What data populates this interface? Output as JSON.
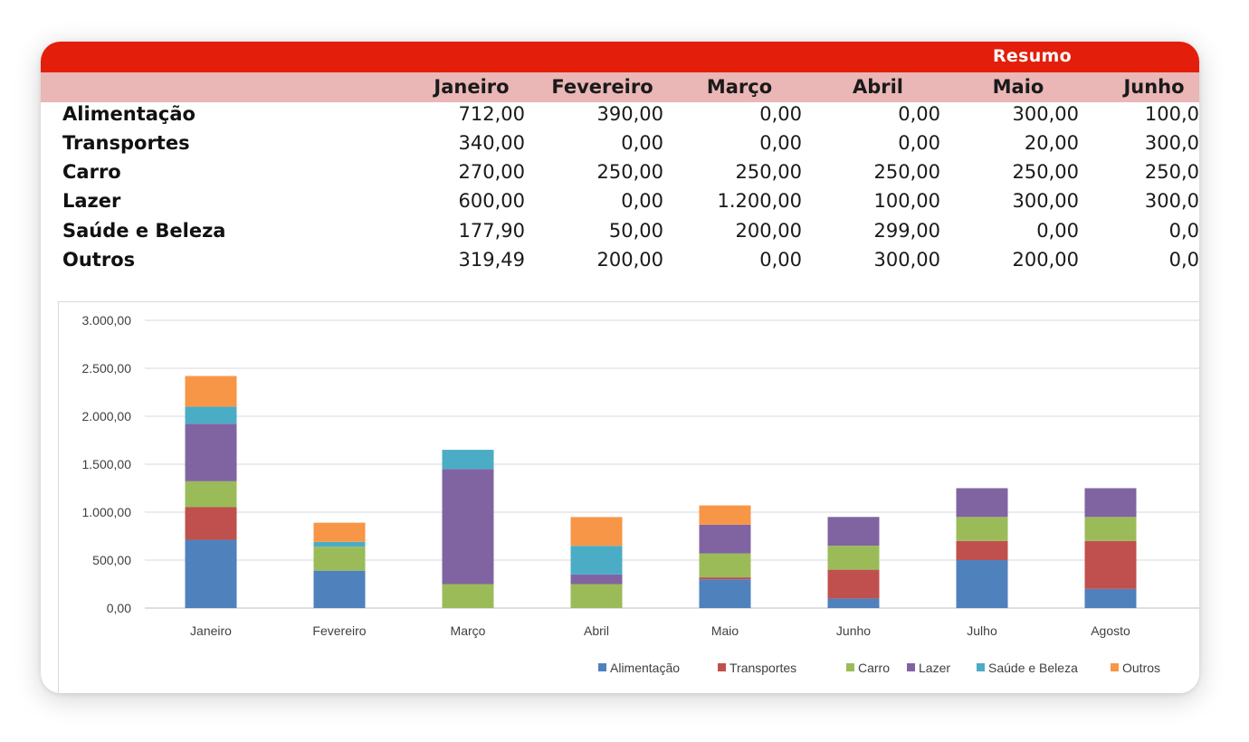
{
  "header": {
    "title": "Resumo"
  },
  "months": [
    "Janeiro",
    "Fevereiro",
    "Março",
    "Abril",
    "Maio",
    "Junho"
  ],
  "rows": [
    {
      "label": "Alimentação",
      "values": [
        "712,00",
        "390,00",
        "0,00",
        "0,00",
        "300,00",
        "100,0"
      ]
    },
    {
      "label": "Transportes",
      "values": [
        "340,00",
        "0,00",
        "0,00",
        "0,00",
        "20,00",
        "300,0"
      ]
    },
    {
      "label": "Carro",
      "values": [
        "270,00",
        "250,00",
        "250,00",
        "250,00",
        "250,00",
        "250,0"
      ]
    },
    {
      "label": "Lazer",
      "values": [
        "600,00",
        "0,00",
        "1.200,00",
        "100,00",
        "300,00",
        "300,0"
      ]
    },
    {
      "label": "Saúde e Beleza",
      "values": [
        "177,90",
        "50,00",
        "200,00",
        "299,00",
        "0,00",
        "0,0"
      ]
    },
    {
      "label": "Outros",
      "values": [
        "319,49",
        "200,00",
        "0,00",
        "300,00",
        "200,00",
        "0,0"
      ]
    }
  ],
  "chart_data": {
    "type": "bar",
    "stacked": true,
    "categories": [
      "Janeiro",
      "Fevereiro",
      "Março",
      "Abril",
      "Maio",
      "Junho",
      "Julho",
      "Agosto"
    ],
    "ylim": [
      0,
      3000
    ],
    "yticks": [
      "0,00",
      "500,00",
      "1.000,00",
      "1.500,00",
      "2.000,00",
      "2.500,00",
      "3.000,00"
    ],
    "ytick_values": [
      0,
      500,
      1000,
      1500,
      2000,
      2500,
      3000
    ],
    "grid": true,
    "legend_position": "bottom-right",
    "series": [
      {
        "name": "Alimentação",
        "color": "#4f81bd",
        "values": [
          712,
          390,
          0,
          0,
          300,
          100,
          500,
          200
        ]
      },
      {
        "name": "Transportes",
        "color": "#c0504d",
        "values": [
          340,
          0,
          0,
          0,
          20,
          300,
          200,
          500
        ]
      },
      {
        "name": "Carro",
        "color": "#9bbb59",
        "values": [
          270,
          250,
          250,
          250,
          250,
          250,
          250,
          250
        ]
      },
      {
        "name": "Lazer",
        "color": "#8064a2",
        "values": [
          600,
          0,
          1200,
          100,
          300,
          300,
          300,
          300
        ]
      },
      {
        "name": "Saúde e Beleza",
        "color": "#4bacc6",
        "values": [
          177.9,
          50,
          200,
          299,
          0,
          0,
          0,
          0
        ]
      },
      {
        "name": "Outros",
        "color": "#f79646",
        "values": [
          319.49,
          200,
          0,
          300,
          200,
          0,
          0,
          0
        ]
      }
    ]
  }
}
